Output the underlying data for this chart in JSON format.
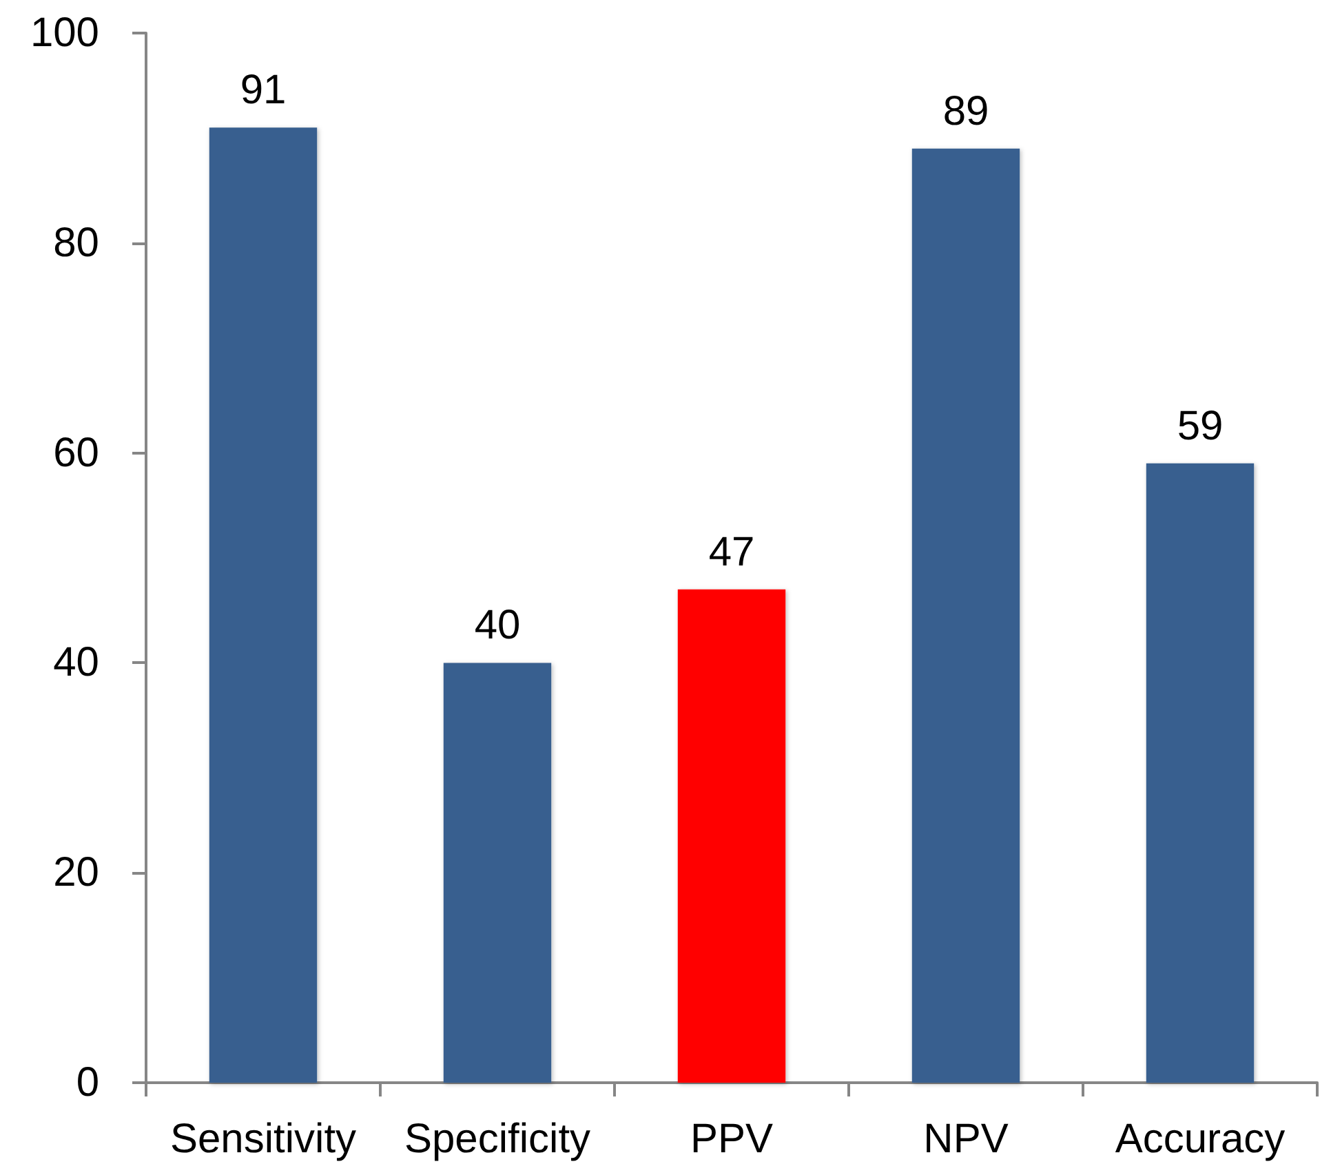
{
  "chart_data": {
    "type": "bar",
    "categories": [
      "Sensitivity",
      "Specificity",
      "PPV",
      "NPV",
      "Accuracy"
    ],
    "values": [
      91,
      40,
      47,
      89,
      59
    ],
    "colors": [
      "#375f8f",
      "#375f8f",
      "#ff0000",
      "#375f8f",
      "#375f8f"
    ],
    "ylim": [
      0,
      100
    ],
    "yticks": [
      0,
      20,
      40,
      60,
      80,
      100
    ],
    "data_labels": true,
    "grid": false
  }
}
